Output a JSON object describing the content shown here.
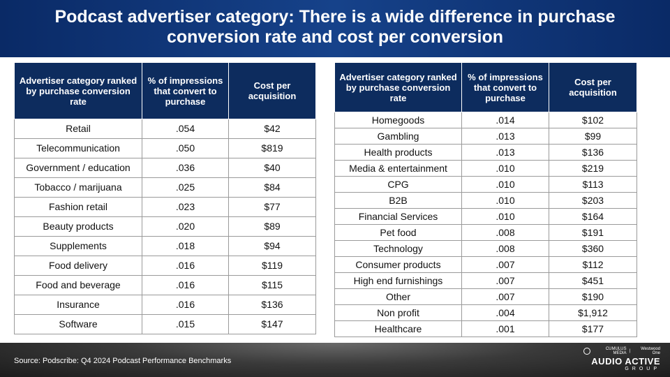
{
  "header": {
    "title": "Podcast advertiser category: There is a wide difference in purchase conversion rate and cost per conversion"
  },
  "columns": {
    "category": "Advertiser category ranked by purchase conversion rate",
    "conversion": "% of impressions that convert to purchase",
    "cpa": "Cost per acquisition"
  },
  "left_table": [
    [
      "Retail",
      ".054",
      "$42"
    ],
    [
      "Telecommunication",
      ".050",
      "$819"
    ],
    [
      "Government / education",
      ".036",
      "$40"
    ],
    [
      "Tobacco / marijuana",
      ".025",
      "$84"
    ],
    [
      "Fashion retail",
      ".023",
      "$77"
    ],
    [
      "Beauty products",
      ".020",
      "$89"
    ],
    [
      "Supplements",
      ".018",
      "$94"
    ],
    [
      "Food delivery",
      ".016",
      "$119"
    ],
    [
      "Food and beverage",
      ".016",
      "$115"
    ],
    [
      "Insurance",
      ".016",
      "$136"
    ],
    [
      "Software",
      ".015",
      "$147"
    ]
  ],
  "right_table": [
    [
      "Homegoods",
      ".014",
      "$102"
    ],
    [
      "Gambling",
      ".013",
      "$99"
    ],
    [
      "Health products",
      ".013",
      "$136"
    ],
    [
      "Media & entertainment",
      ".010",
      "$219"
    ],
    [
      "CPG",
      ".010",
      "$113"
    ],
    [
      "B2B",
      ".010",
      "$203"
    ],
    [
      "Financial Services",
      ".010",
      "$164"
    ],
    [
      "Pet food",
      ".008",
      "$191"
    ],
    [
      "Technology",
      ".008",
      "$360"
    ],
    [
      "Consumer products",
      ".007",
      "$112"
    ],
    [
      "High end furnishings",
      ".007",
      "$451"
    ],
    [
      "Other",
      ".007",
      "$190"
    ],
    [
      "Non profit",
      ".004",
      "$1,912"
    ],
    [
      "Healthcare",
      ".001",
      "$177"
    ]
  ],
  "footer": {
    "source": "Source: Podscribe: Q4 2024 Podcast Performance Benchmarks",
    "logo_top_left": "CUMULUS MEDIA",
    "logo_top_right": "Westwood One",
    "logo_main": "AUDIO ACTIVE",
    "logo_sub": "GROUP"
  }
}
